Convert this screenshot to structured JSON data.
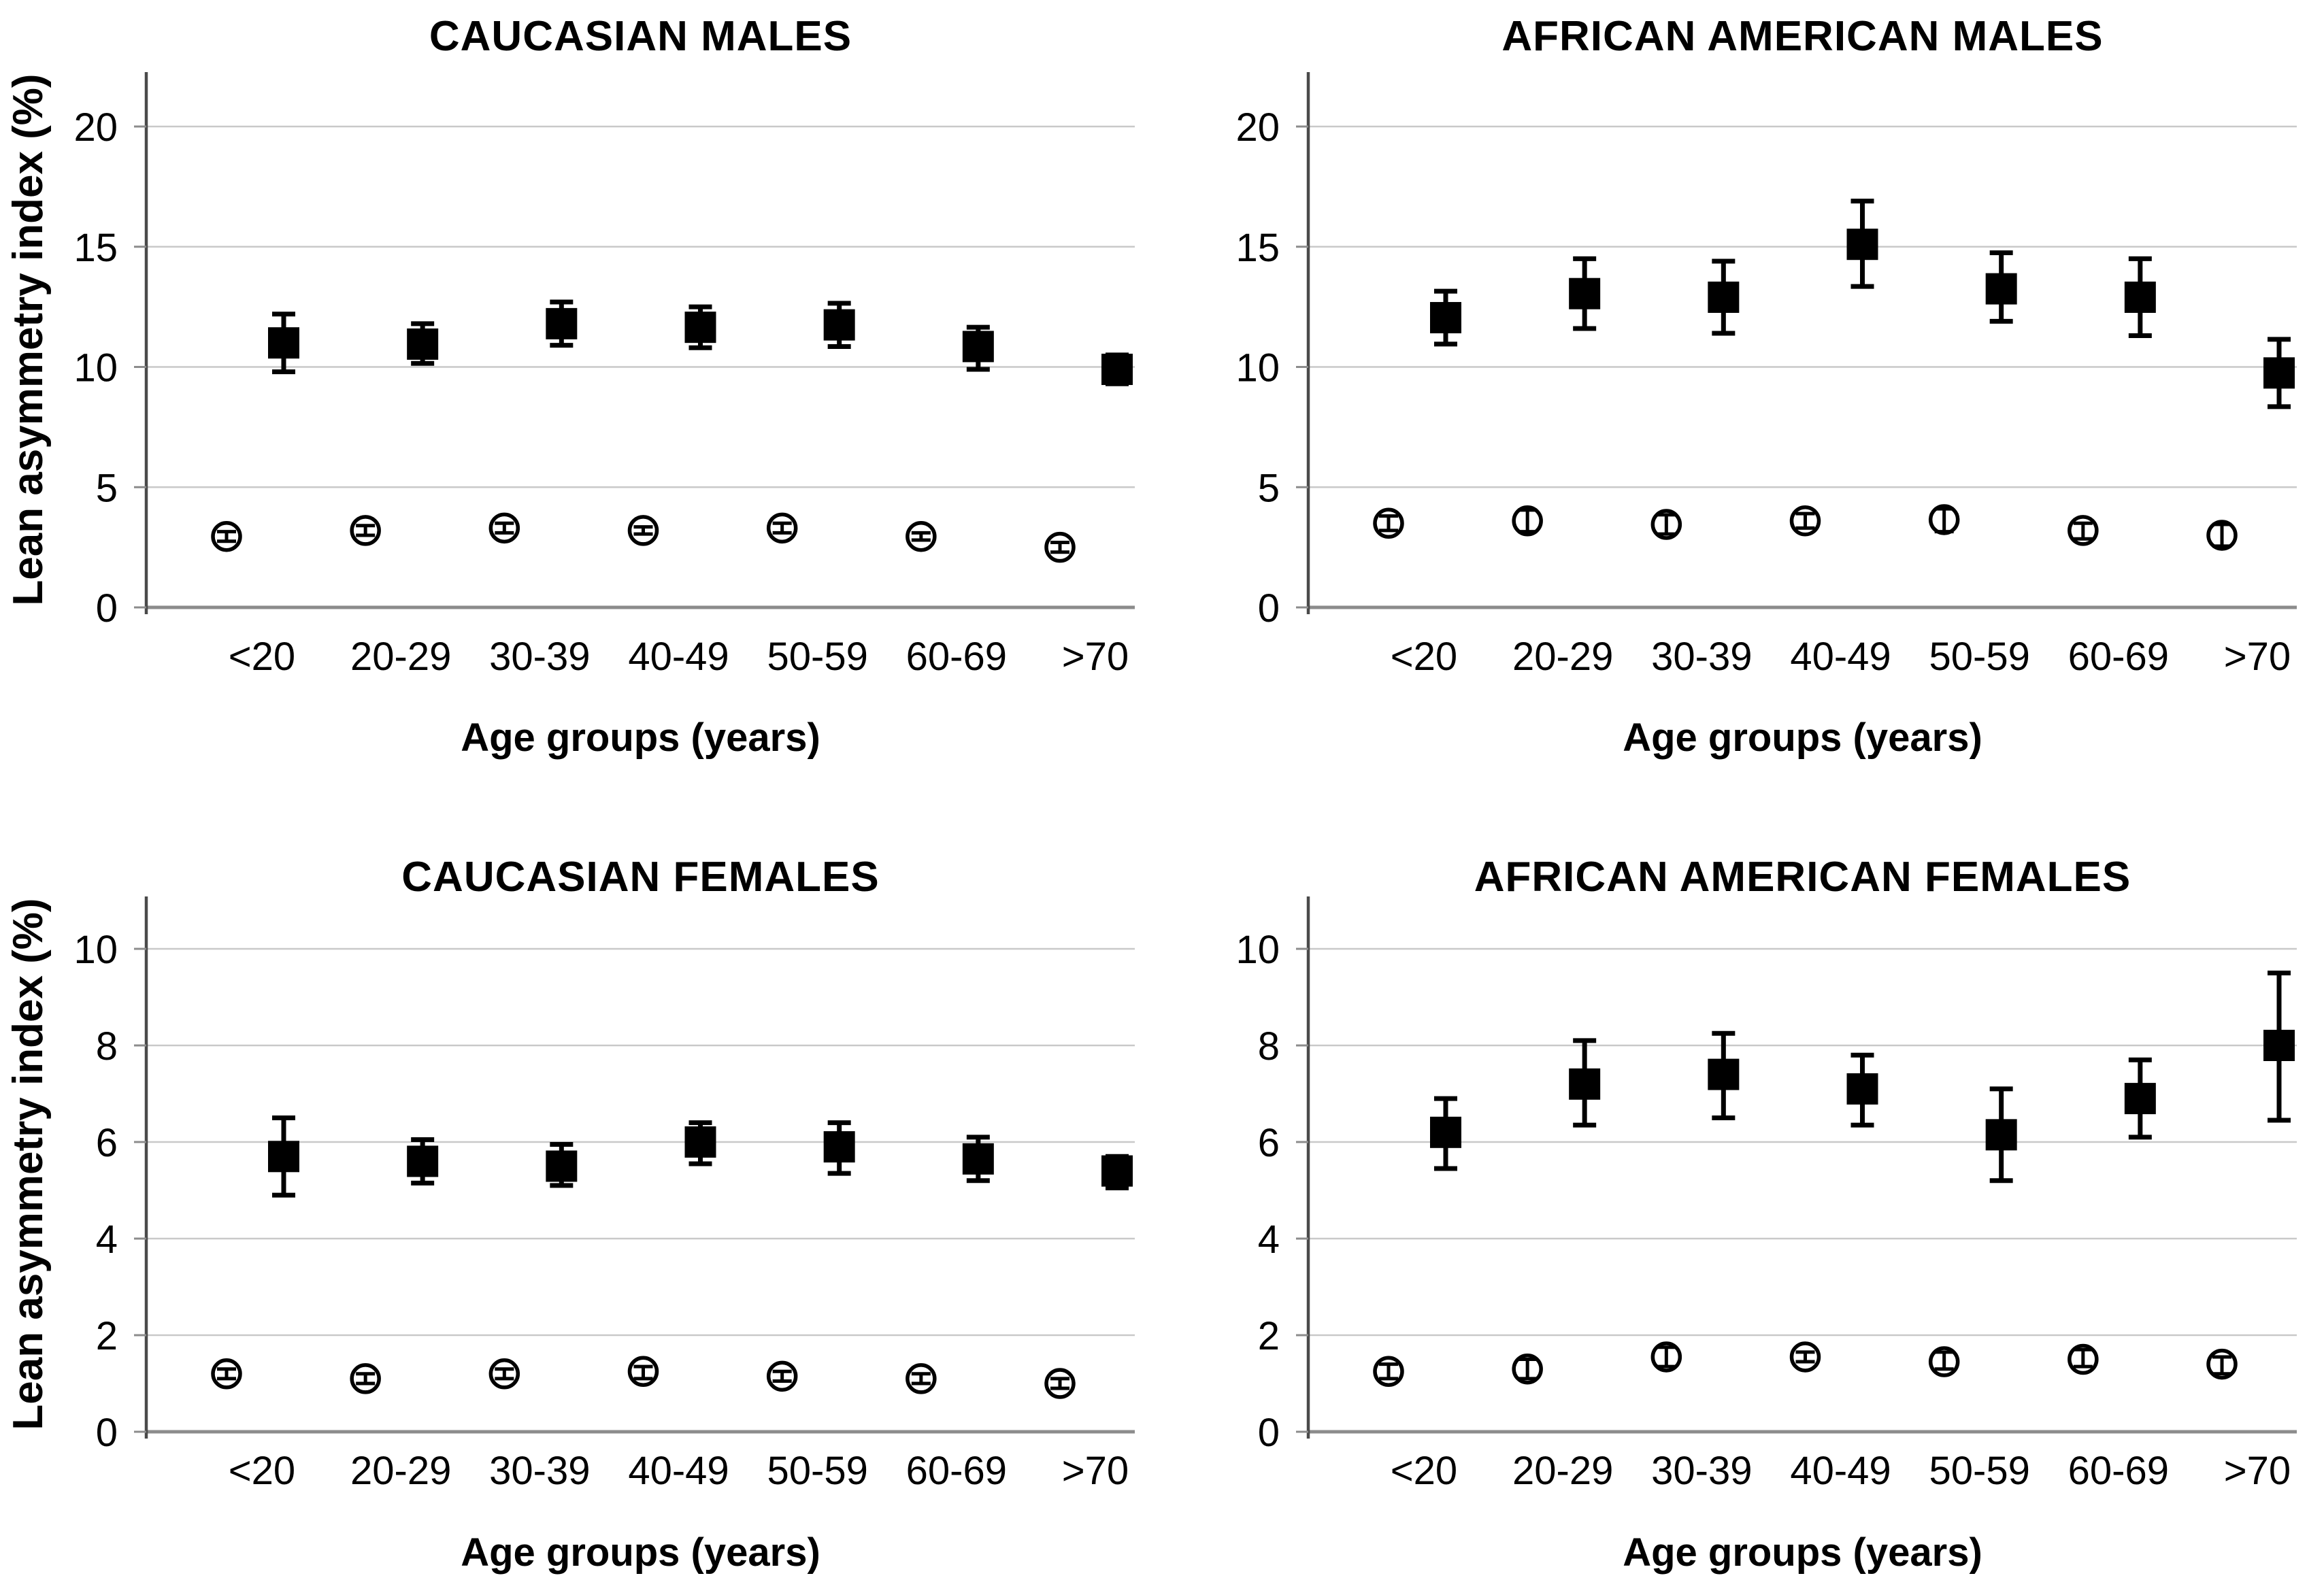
{
  "figure": {
    "background_color": "#ffffff",
    "marker_color": "#000000",
    "gridline_color": "#c9c9c9",
    "axis_color": "#4a4a4a",
    "baseline_color": "#8c8c8c",
    "ylabel": "Lean asymmetry index (%)",
    "xlabel": "Age groups (years)"
  },
  "chart_data": [
    {
      "type": "scatter",
      "title": "CAUCASIAN MALES",
      "xlabel": "Age groups (years)",
      "ylabel": "Lean asymmetry index (%)",
      "show_ylabel": true,
      "categories": [
        "<20",
        "20-29",
        "30-39",
        "40-49",
        "50-59",
        "60-69",
        ">70"
      ],
      "ylim": [
        0,
        20
      ],
      "yticks": [
        0,
        5,
        10,
        15,
        20
      ],
      "grid": true,
      "legend": "none",
      "series": [
        {
          "name": "filled squares",
          "marker": "filled-square",
          "values": [
            11.0,
            10.95,
            11.8,
            11.65,
            11.75,
            10.85,
            9.9
          ],
          "lower": [
            9.8,
            10.15,
            10.9,
            10.8,
            10.85,
            9.9,
            9.3
          ],
          "upper": [
            12.2,
            11.8,
            12.7,
            12.5,
            12.65,
            11.65,
            10.5
          ]
        },
        {
          "name": "open circles",
          "marker": "open-circle",
          "values": [
            2.95,
            3.2,
            3.3,
            3.2,
            3.3,
            2.95,
            2.5
          ],
          "lower": [
            2.75,
            3.0,
            3.1,
            3.05,
            3.1,
            2.8,
            2.3
          ],
          "upper": [
            3.15,
            3.4,
            3.5,
            3.35,
            3.5,
            3.1,
            2.7
          ]
        }
      ]
    },
    {
      "type": "scatter",
      "title": "AFRICAN AMERICAN MALES",
      "xlabel": "Age groups (years)",
      "ylabel": "Lean asymmetry index (%)",
      "show_ylabel": false,
      "categories": [
        "<20",
        "20-29",
        "30-39",
        "40-49",
        "50-59",
        "60-69",
        ">70"
      ],
      "ylim": [
        0,
        20
      ],
      "yticks": [
        0,
        5,
        10,
        15,
        20
      ],
      "grid": true,
      "legend": "none",
      "series": [
        {
          "name": "filled squares",
          "marker": "filled-square",
          "values": [
            12.05,
            13.05,
            12.9,
            15.1,
            13.25,
            12.9,
            9.75
          ],
          "lower": [
            10.95,
            11.6,
            11.4,
            13.35,
            11.9,
            11.3,
            8.35
          ],
          "upper": [
            13.15,
            14.5,
            14.4,
            16.9,
            14.75,
            14.5,
            11.15
          ]
        },
        {
          "name": "open circles",
          "marker": "open-circle",
          "values": [
            3.5,
            3.6,
            3.45,
            3.6,
            3.65,
            3.2,
            3.0
          ],
          "lower": [
            3.2,
            3.15,
            3.05,
            3.3,
            3.15,
            2.85,
            2.55
          ],
          "upper": [
            3.8,
            4.05,
            3.85,
            3.9,
            4.1,
            3.5,
            3.45
          ]
        }
      ]
    },
    {
      "type": "scatter",
      "title": "CAUCASIAN FEMALES",
      "xlabel": "Age groups (years)",
      "ylabel": "Lean asymmetry index (%)",
      "show_ylabel": true,
      "categories": [
        "<20",
        "20-29",
        "30-39",
        "40-49",
        "50-59",
        "60-69",
        ">70"
      ],
      "ylim": [
        0,
        10
      ],
      "yticks": [
        0,
        2,
        4,
        6,
        8,
        10
      ],
      "grid": true,
      "legend": "none",
      "series": [
        {
          "name": "filled squares",
          "marker": "filled-square",
          "values": [
            5.7,
            5.6,
            5.5,
            6.0,
            5.9,
            5.65,
            5.4
          ],
          "lower": [
            4.9,
            5.15,
            5.1,
            5.55,
            5.35,
            5.2,
            5.05
          ],
          "upper": [
            6.5,
            6.05,
            5.95,
            6.4,
            6.4,
            6.1,
            5.7
          ]
        },
        {
          "name": "open circles",
          "marker": "open-circle",
          "values": [
            1.2,
            1.1,
            1.2,
            1.25,
            1.15,
            1.1,
            1.0
          ],
          "lower": [
            1.1,
            1.0,
            1.1,
            1.1,
            1.05,
            1.0,
            0.9
          ],
          "upper": [
            1.3,
            1.2,
            1.3,
            1.35,
            1.25,
            1.2,
            1.1
          ]
        }
      ]
    },
    {
      "type": "scatter",
      "title": "AFRICAN AMERICAN FEMALES",
      "xlabel": "Age groups (years)",
      "ylabel": "Lean asymmetry index (%)",
      "show_ylabel": false,
      "categories": [
        "<20",
        "20-29",
        "30-39",
        "40-49",
        "50-59",
        "60-69",
        ">70"
      ],
      "ylim": [
        0,
        10
      ],
      "yticks": [
        0,
        2,
        4,
        6,
        8,
        10
      ],
      "grid": true,
      "legend": "none",
      "series": [
        {
          "name": "filled squares",
          "marker": "filled-square",
          "values": [
            6.2,
            7.2,
            7.4,
            7.1,
            6.15,
            6.9,
            8.0
          ],
          "lower": [
            5.45,
            6.35,
            6.5,
            6.35,
            5.2,
            6.1,
            6.45
          ],
          "upper": [
            6.9,
            8.1,
            8.25,
            7.8,
            7.1,
            7.7,
            9.5
          ]
        },
        {
          "name": "open circles",
          "marker": "open-circle",
          "values": [
            1.25,
            1.3,
            1.55,
            1.55,
            1.45,
            1.5,
            1.4
          ],
          "lower": [
            1.1,
            1.1,
            1.35,
            1.45,
            1.3,
            1.35,
            1.2
          ],
          "upper": [
            1.4,
            1.5,
            1.75,
            1.65,
            1.65,
            1.7,
            1.55
          ]
        }
      ]
    }
  ]
}
